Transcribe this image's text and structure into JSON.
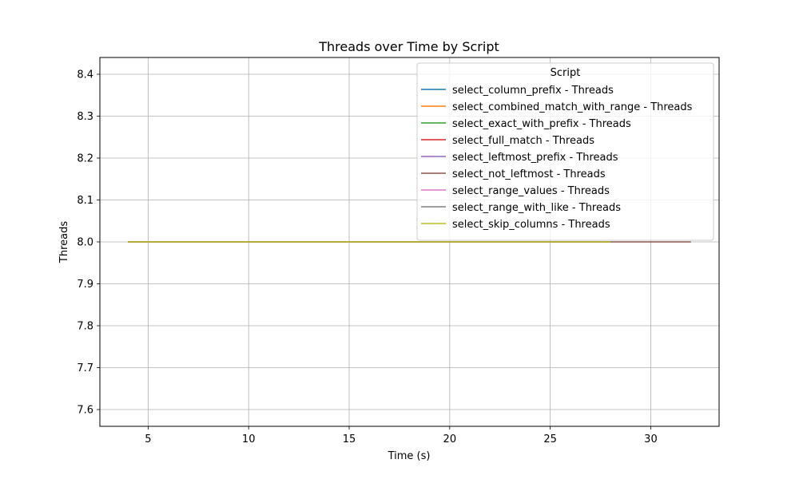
{
  "chart_data": {
    "type": "line",
    "title": "Threads over Time by Script",
    "xlabel": "Time (s)",
    "ylabel": "Threads",
    "xlim": [
      2.6,
      33.4
    ],
    "ylim": [
      7.56,
      8.44
    ],
    "xticks": [
      5,
      10,
      15,
      20,
      25,
      30
    ],
    "yticks": [
      7.6,
      7.7,
      7.8,
      7.9,
      8.0,
      8.1,
      8.2,
      8.3,
      8.4
    ],
    "grid": true,
    "legend": {
      "title": "Script",
      "placement": "top-right"
    },
    "series": [
      {
        "name": "select_column_prefix - Threads",
        "color": "#1f77b4",
        "x": [
          4,
          28
        ],
        "y": [
          8.0,
          8.0
        ]
      },
      {
        "name": "select_combined_match_with_range - Threads",
        "color": "#ff7f0e",
        "x": [
          4,
          28
        ],
        "y": [
          8.0,
          8.0
        ]
      },
      {
        "name": "select_exact_with_prefix - Threads",
        "color": "#2ca02c",
        "x": [
          4,
          28
        ],
        "y": [
          8.0,
          8.0
        ]
      },
      {
        "name": "select_full_match - Threads",
        "color": "#d62728",
        "x": [
          4,
          28
        ],
        "y": [
          8.0,
          8.0
        ]
      },
      {
        "name": "select_leftmost_prefix - Threads",
        "color": "#9467bd",
        "x": [
          4,
          28
        ],
        "y": [
          8.0,
          8.0
        ]
      },
      {
        "name": "select_not_leftmost - Threads",
        "color": "#8c564b",
        "x": [
          4,
          32
        ],
        "y": [
          8.0,
          8.0
        ]
      },
      {
        "name": "select_range_values - Threads",
        "color": "#e377c2",
        "x": [
          4,
          28
        ],
        "y": [
          8.0,
          8.0
        ]
      },
      {
        "name": "select_range_with_like - Threads",
        "color": "#7f7f7f",
        "x": [
          4,
          28
        ],
        "y": [
          8.0,
          8.0
        ]
      },
      {
        "name": "select_skip_columns - Threads",
        "color": "#bcbd22",
        "x": [
          4,
          28
        ],
        "y": [
          8.0,
          8.0
        ]
      }
    ]
  }
}
